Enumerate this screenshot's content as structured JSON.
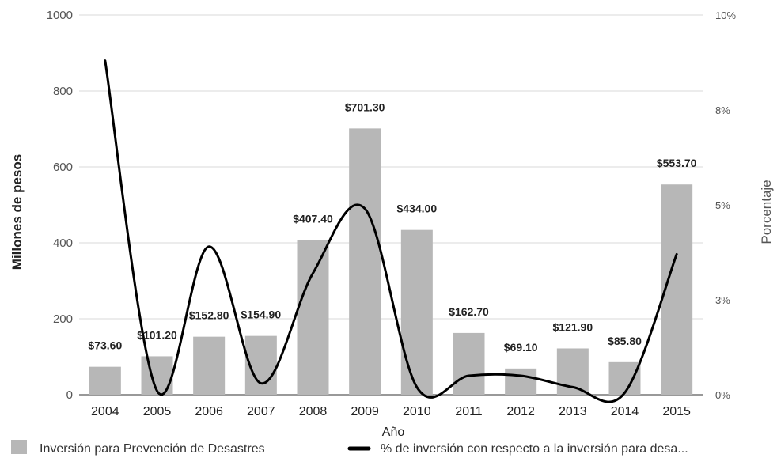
{
  "chart_data": {
    "type": "bar",
    "categories": [
      "2004",
      "2005",
      "2006",
      "2007",
      "2008",
      "2009",
      "2010",
      "2011",
      "2012",
      "2013",
      "2014",
      "2015"
    ],
    "series": [
      {
        "name": "Inversión para Prevención de Desastres",
        "type": "bar",
        "axis": "left",
        "color": "#b7b7b7",
        "values": [
          73.6,
          101.2,
          152.8,
          154.9,
          407.4,
          701.3,
          434.0,
          162.7,
          69.1,
          121.9,
          85.8,
          553.7
        ],
        "data_labels": [
          "$73.60",
          "$101.20",
          "$152.80",
          "$154.90",
          "$407.40",
          "$701.30",
          "$434.00",
          "$162.70",
          "$69.10",
          "$121.90",
          "$85.80",
          "$553.70"
        ]
      },
      {
        "name": "% de inversión con respecto a la inversión para desa...",
        "type": "line",
        "axis": "right",
        "color": "#000000",
        "values": [
          8.8,
          0.1,
          3.9,
          0.3,
          3.2,
          4.9,
          0.2,
          0.5,
          0.5,
          0.2,
          0.05,
          3.7
        ]
      }
    ],
    "xlabel": "Año",
    "ylabel": "Millones de pesos",
    "y2label": "Porcentaje",
    "ylim": [
      0,
      1000
    ],
    "y2lim": [
      0,
      10
    ],
    "yticks": [
      "0",
      "200",
      "400",
      "600",
      "800",
      "1000"
    ],
    "yticks_values": [
      0,
      200,
      400,
      600,
      800,
      1000
    ],
    "y2ticks": [
      "0%",
      "3%",
      "5%",
      "8%",
      "10%"
    ],
    "y2ticks_values": [
      0,
      2.5,
      5,
      7.5,
      10
    ],
    "grid": true,
    "legend_position": "bottom"
  }
}
